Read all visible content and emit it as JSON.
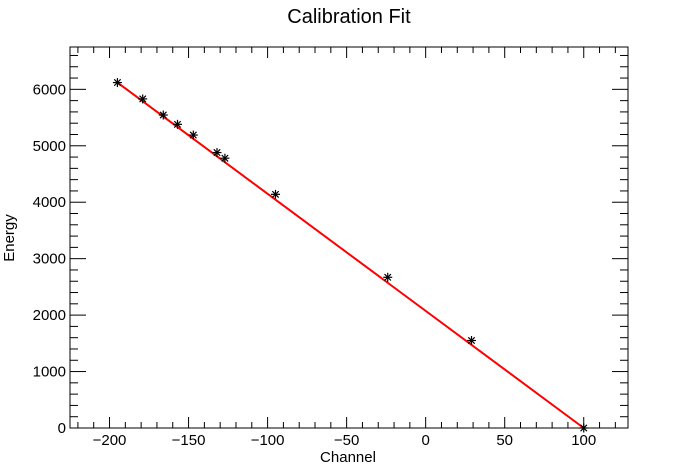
{
  "chart_data": {
    "type": "scatter",
    "title": "Calibration Fit",
    "xlabel": "Channel",
    "ylabel": "Energy",
    "xlim": [
      -225,
      128
    ],
    "ylim": [
      0,
      6750
    ],
    "xticks": [
      -200,
      -150,
      -100,
      -50,
      0,
      50,
      100
    ],
    "yticks": [
      0,
      1000,
      2000,
      3000,
      4000,
      5000,
      6000
    ],
    "xtick_labels": [
      "−200",
      "−150",
      "−100",
      "−50",
      "0",
      "50",
      "100"
    ],
    "ytick_labels": [
      "0",
      "1000",
      "2000",
      "3000",
      "4000",
      "5000",
      "6000"
    ],
    "grid": false,
    "legend": "none",
    "series": [
      {
        "marker": "asterisk",
        "color": "#000000",
        "x": [
          -195,
          -179,
          -166,
          -157,
          -147,
          -132,
          -127,
          -95,
          -24,
          29,
          100
        ],
        "y": [
          6120,
          5830,
          5545,
          5380,
          5190,
          4880,
          4780,
          4140,
          2670,
          1550,
          0
        ]
      }
    ],
    "fit_line": {
      "color": "#ff0000",
      "x": [
        -195,
        100
      ],
      "y": [
        6120,
        0
      ]
    }
  }
}
